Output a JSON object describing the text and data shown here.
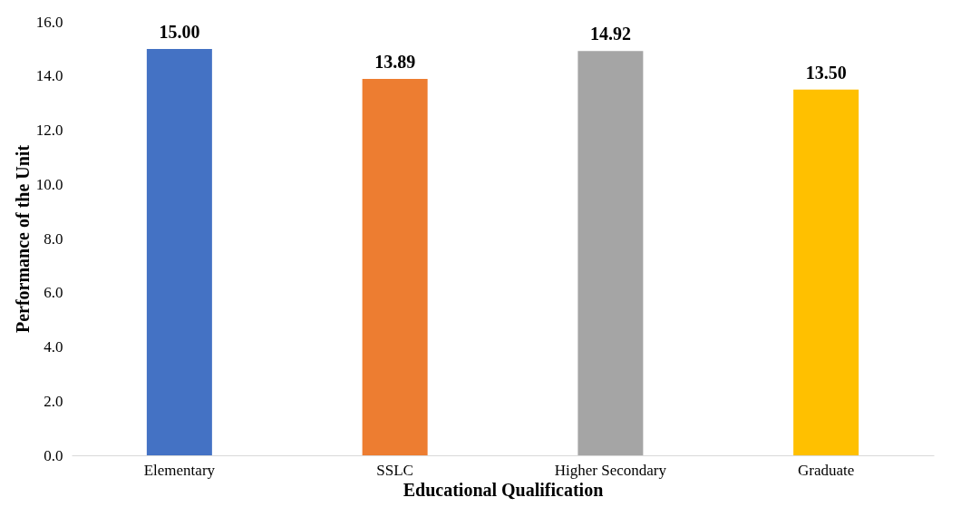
{
  "chart_data": {
    "type": "bar",
    "xlabel": "Educational Qualification",
    "ylabel": "Performance of the Unit",
    "categories": [
      "Elementary",
      "SSLC",
      "Higher Secondary",
      "Graduate"
    ],
    "values": [
      15.0,
      13.89,
      14.92,
      13.5
    ],
    "colors": [
      "#4472c4",
      "#ed7d31",
      "#a5a5a5",
      "#ffc000"
    ],
    "value_labels": [
      "15.00",
      "13.89",
      "14.92",
      "13.50"
    ],
    "ylim": [
      0,
      16
    ],
    "yticks": [
      {
        "value": 0,
        "label": "0.0"
      },
      {
        "value": 2,
        "label": "2.0"
      },
      {
        "value": 4,
        "label": "4.0"
      },
      {
        "value": 6,
        "label": "6.0"
      },
      {
        "value": 8,
        "label": "8.0"
      },
      {
        "value": 10,
        "label": "10.0"
      },
      {
        "value": 12,
        "label": "12.0"
      },
      {
        "value": 14,
        "label": "14.0"
      },
      {
        "value": 16,
        "label": "16.0"
      }
    ],
    "grid": false
  }
}
